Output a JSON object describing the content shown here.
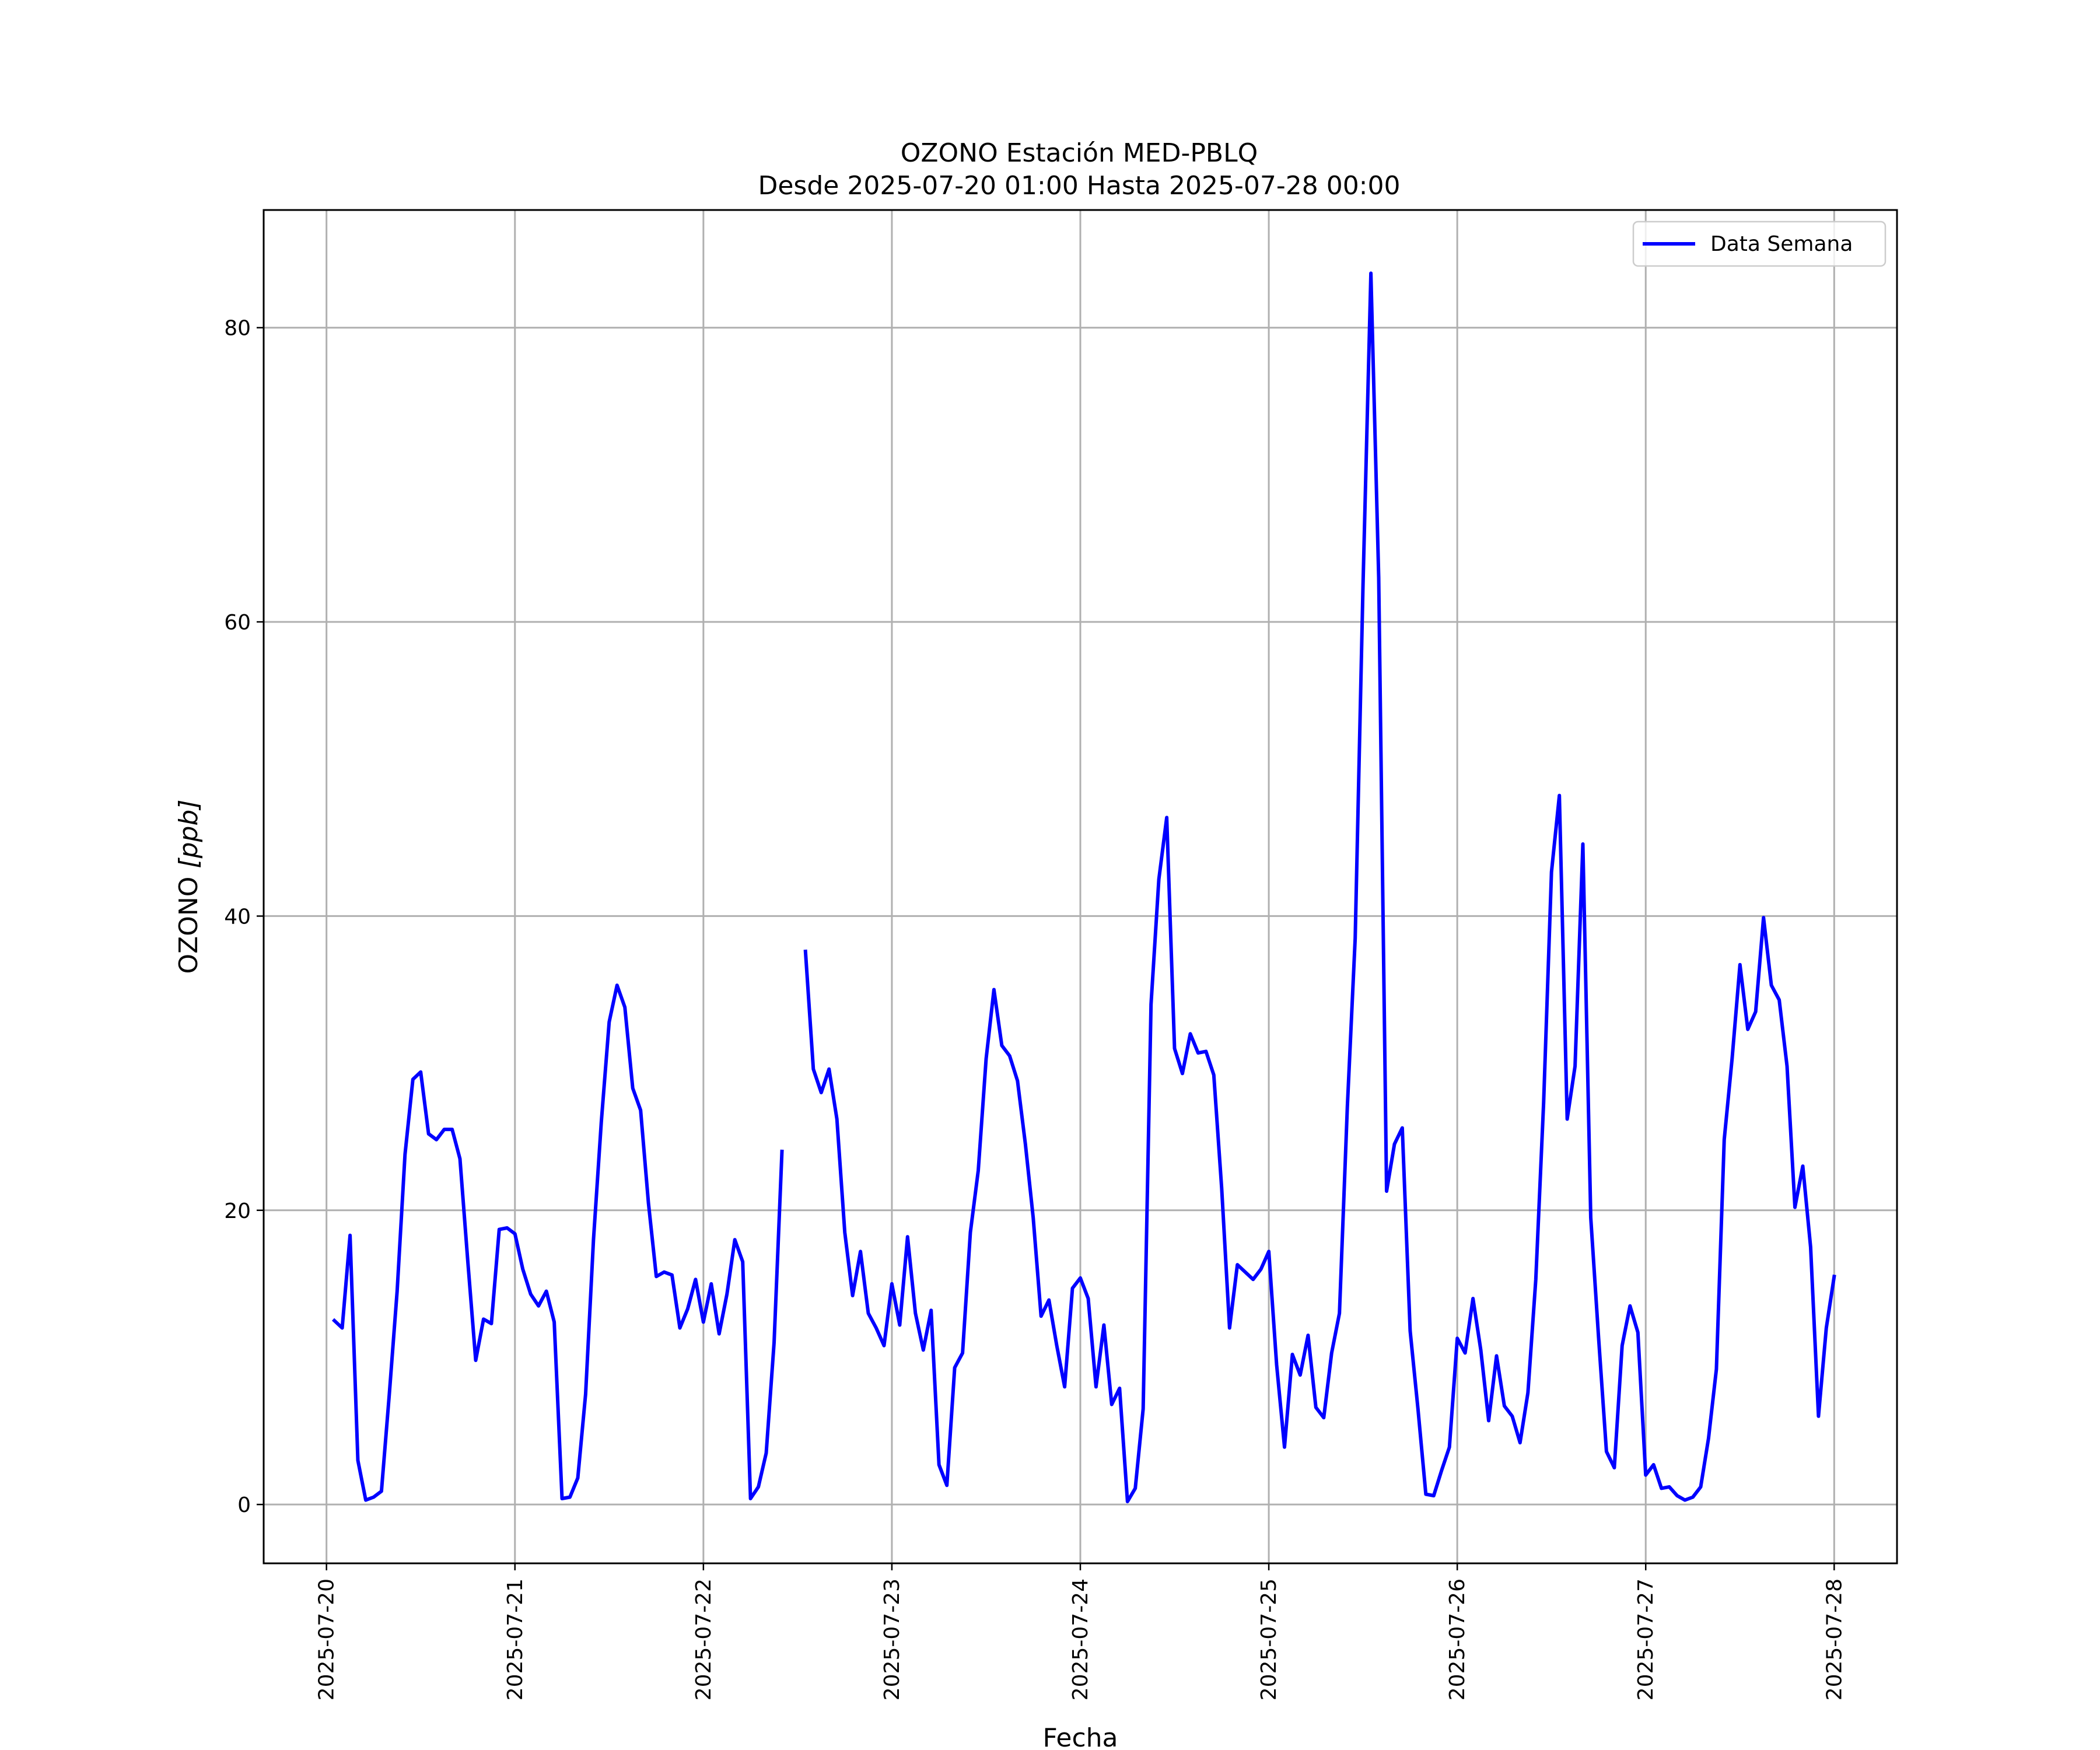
{
  "chart_data": {
    "type": "line",
    "title": "OZONO Estación MED-PBLQ",
    "subtitle": "Desde 2025-07-20 01:00 Hasta 2025-07-28 00:00",
    "xlabel": "Fecha",
    "ylabel_main": "OZONO ",
    "ylabel_unit": "[ppb]",
    "xlim": [
      "2025-07-19 16:00",
      "2025-07-28 08:00"
    ],
    "ylim": [
      -4,
      88
    ],
    "x_ticks": [
      "2025-07-20",
      "2025-07-21",
      "2025-07-22",
      "2025-07-23",
      "2025-07-24",
      "2025-07-25",
      "2025-07-26",
      "2025-07-27",
      "2025-07-28"
    ],
    "y_ticks": [
      0,
      20,
      40,
      60,
      80
    ],
    "grid": true,
    "legend_position": "top-right",
    "line_color": "#0000ff",
    "series": [
      {
        "name": "Data Semana",
        "points": [
          [
            "2025-07-20 01:00",
            12.5
          ],
          [
            "2025-07-20 02:00",
            12.0
          ],
          [
            "2025-07-20 03:00",
            18.3
          ],
          [
            "2025-07-20 04:00",
            3.0
          ],
          [
            "2025-07-20 05:00",
            0.3
          ],
          [
            "2025-07-20 06:00",
            0.5
          ],
          [
            "2025-07-20 07:00",
            0.9
          ],
          [
            "2025-07-20 08:00",
            7.5
          ],
          [
            "2025-07-20 09:00",
            14.5
          ],
          [
            "2025-07-20 10:00",
            23.8
          ],
          [
            "2025-07-20 11:00",
            28.9
          ],
          [
            "2025-07-20 12:00",
            29.4
          ],
          [
            "2025-07-20 13:00",
            25.2
          ],
          [
            "2025-07-20 14:00",
            24.8
          ],
          [
            "2025-07-20 15:00",
            25.5
          ],
          [
            "2025-07-20 16:00",
            25.5
          ],
          [
            "2025-07-20 17:00",
            23.5
          ],
          [
            "2025-07-20 18:00",
            16.5
          ],
          [
            "2025-07-20 19:00",
            9.8
          ],
          [
            "2025-07-20 20:00",
            12.6
          ],
          [
            "2025-07-20 21:00",
            12.3
          ],
          [
            "2025-07-20 22:00",
            18.7
          ],
          [
            "2025-07-20 23:00",
            18.8
          ],
          [
            "2025-07-21 00:00",
            18.4
          ],
          [
            "2025-07-21 01:00",
            16.0
          ],
          [
            "2025-07-21 02:00",
            14.3
          ],
          [
            "2025-07-21 03:00",
            13.5
          ],
          [
            "2025-07-21 04:00",
            14.5
          ],
          [
            "2025-07-21 05:00",
            12.4
          ],
          [
            "2025-07-21 06:00",
            0.4
          ],
          [
            "2025-07-21 07:00",
            0.5
          ],
          [
            "2025-07-21 08:00",
            1.8
          ],
          [
            "2025-07-21 09:00",
            7.5
          ],
          [
            "2025-07-21 10:00",
            18.0
          ],
          [
            "2025-07-21 11:00",
            26.0
          ],
          [
            "2025-07-21 12:00",
            32.8
          ],
          [
            "2025-07-21 13:00",
            35.3
          ],
          [
            "2025-07-21 14:00",
            33.8
          ],
          [
            "2025-07-21 15:00",
            28.3
          ],
          [
            "2025-07-21 16:00",
            26.8
          ],
          [
            "2025-07-21 17:00",
            20.5
          ],
          [
            "2025-07-21 18:00",
            15.5
          ],
          [
            "2025-07-21 19:00",
            15.8
          ],
          [
            "2025-07-21 20:00",
            15.6
          ],
          [
            "2025-07-21 21:00",
            12.0
          ],
          [
            "2025-07-21 22:00",
            13.3
          ],
          [
            "2025-07-21 23:00",
            15.3
          ],
          [
            "2025-07-22 00:00",
            12.4
          ],
          [
            "2025-07-22 01:00",
            15.0
          ],
          [
            "2025-07-22 02:00",
            11.6
          ],
          [
            "2025-07-22 03:00",
            14.3
          ],
          [
            "2025-07-22 04:00",
            18.0
          ],
          [
            "2025-07-22 05:00",
            16.5
          ],
          [
            "2025-07-22 06:00",
            0.4
          ],
          [
            "2025-07-22 07:00",
            1.2
          ],
          [
            "2025-07-22 08:00",
            3.5
          ],
          [
            "2025-07-22 09:00",
            11.0
          ],
          [
            "2025-07-22 10:00",
            24.0
          ],
          null,
          [
            "2025-07-22 13:00",
            37.6
          ],
          [
            "2025-07-22 14:00",
            29.6
          ],
          [
            "2025-07-22 15:00",
            28.0
          ],
          [
            "2025-07-22 16:00",
            29.6
          ],
          [
            "2025-07-22 17:00",
            26.2
          ],
          [
            "2025-07-22 18:00",
            18.5
          ],
          [
            "2025-07-22 19:00",
            14.2
          ],
          [
            "2025-07-22 20:00",
            17.2
          ],
          [
            "2025-07-22 21:00",
            13.0
          ],
          [
            "2025-07-22 22:00",
            12.0
          ],
          [
            "2025-07-22 23:00",
            10.8
          ],
          [
            "2025-07-23 00:00",
            15.0
          ],
          [
            "2025-07-23 01:00",
            12.2
          ],
          [
            "2025-07-23 02:00",
            18.2
          ],
          [
            "2025-07-23 03:00",
            13.0
          ],
          [
            "2025-07-23 04:00",
            10.5
          ],
          [
            "2025-07-23 05:00",
            13.2
          ],
          [
            "2025-07-23 06:00",
            2.7
          ],
          [
            "2025-07-23 07:00",
            1.3
          ],
          [
            "2025-07-23 08:00",
            9.3
          ],
          [
            "2025-07-23 09:00",
            10.3
          ],
          [
            "2025-07-23 10:00",
            18.5
          ],
          [
            "2025-07-23 11:00",
            22.7
          ],
          [
            "2025-07-23 12:00",
            30.3
          ],
          [
            "2025-07-23 13:00",
            35.0
          ],
          [
            "2025-07-23 14:00",
            31.2
          ],
          [
            "2025-07-23 15:00",
            30.5
          ],
          [
            "2025-07-23 16:00",
            28.8
          ],
          [
            "2025-07-23 17:00",
            24.5
          ],
          [
            "2025-07-23 18:00",
            19.5
          ],
          [
            "2025-07-23 19:00",
            12.8
          ],
          [
            "2025-07-23 20:00",
            13.9
          ],
          [
            "2025-07-23 21:00",
            10.8
          ],
          [
            "2025-07-23 22:00",
            8.0
          ],
          [
            "2025-07-23 23:00",
            14.7
          ],
          [
            "2025-07-24 00:00",
            15.4
          ],
          [
            "2025-07-24 01:00",
            14.0
          ],
          [
            "2025-07-24 02:00",
            8.0
          ],
          [
            "2025-07-24 03:00",
            12.2
          ],
          [
            "2025-07-24 04:00",
            6.8
          ],
          [
            "2025-07-24 05:00",
            7.9
          ],
          [
            "2025-07-24 06:00",
            0.2
          ],
          [
            "2025-07-24 07:00",
            1.1
          ],
          [
            "2025-07-24 08:00",
            6.5
          ],
          [
            "2025-07-24 09:00",
            34.0
          ],
          [
            "2025-07-24 10:00",
            42.5
          ],
          [
            "2025-07-24 11:00",
            46.7
          ],
          [
            "2025-07-24 12:00",
            31.0
          ],
          [
            "2025-07-24 13:00",
            29.3
          ],
          [
            "2025-07-24 14:00",
            32.0
          ],
          [
            "2025-07-24 15:00",
            30.7
          ],
          [
            "2025-07-24 16:00",
            30.8
          ],
          [
            "2025-07-24 17:00",
            29.2
          ],
          [
            "2025-07-24 18:00",
            21.5
          ],
          [
            "2025-07-24 19:00",
            12.0
          ],
          [
            "2025-07-24 20:00",
            16.3
          ],
          [
            "2025-07-24 21:00",
            15.8
          ],
          [
            "2025-07-24 22:00",
            15.3
          ],
          [
            "2025-07-24 23:00",
            16.0
          ],
          [
            "2025-07-25 00:00",
            17.2
          ],
          [
            "2025-07-25 01:00",
            9.5
          ],
          [
            "2025-07-25 02:00",
            3.9
          ],
          [
            "2025-07-25 03:00",
            10.2
          ],
          [
            "2025-07-25 04:00",
            8.8
          ],
          [
            "2025-07-25 05:00",
            11.5
          ],
          [
            "2025-07-25 06:00",
            6.6
          ],
          [
            "2025-07-25 07:00",
            5.9
          ],
          [
            "2025-07-25 08:00",
            10.3
          ],
          [
            "2025-07-25 09:00",
            13.0
          ],
          [
            "2025-07-25 10:00",
            27.0
          ],
          [
            "2025-07-25 11:00",
            38.5
          ],
          [
            "2025-07-25 12:00",
            62.5
          ],
          [
            "2025-07-25 13:00",
            83.7
          ],
          [
            "2025-07-25 14:00",
            63.0
          ],
          [
            "2025-07-25 15:00",
            21.3
          ],
          [
            "2025-07-25 16:00",
            24.5
          ],
          [
            "2025-07-25 17:00",
            25.6
          ],
          [
            "2025-07-25 18:00",
            11.8
          ],
          [
            "2025-07-25 19:00",
            6.5
          ],
          [
            "2025-07-25 20:00",
            0.7
          ],
          [
            "2025-07-25 21:00",
            0.6
          ],
          [
            "2025-07-25 22:00",
            2.3
          ],
          [
            "2025-07-25 23:00",
            3.9
          ],
          [
            "2025-07-26 00:00",
            11.3
          ],
          [
            "2025-07-26 01:00",
            10.3
          ],
          [
            "2025-07-26 02:00",
            14.0
          ],
          [
            "2025-07-26 03:00",
            10.5
          ],
          [
            "2025-07-26 04:00",
            5.7
          ],
          [
            "2025-07-26 05:00",
            10.1
          ],
          [
            "2025-07-26 06:00",
            6.7
          ],
          [
            "2025-07-26 07:00",
            6.0
          ],
          [
            "2025-07-26 08:00",
            4.2
          ],
          [
            "2025-07-26 09:00",
            7.6
          ],
          [
            "2025-07-26 10:00",
            15.3
          ],
          [
            "2025-07-26 11:00",
            27.3
          ],
          [
            "2025-07-26 12:00",
            43.0
          ],
          [
            "2025-07-26 13:00",
            48.2
          ],
          [
            "2025-07-26 14:00",
            26.2
          ],
          [
            "2025-07-26 15:00",
            29.8
          ],
          [
            "2025-07-26 16:00",
            44.9
          ],
          [
            "2025-07-26 17:00",
            19.5
          ],
          [
            "2025-07-26 18:00",
            11.3
          ],
          [
            "2025-07-26 19:00",
            3.6
          ],
          [
            "2025-07-26 20:00",
            2.5
          ],
          [
            "2025-07-26 21:00",
            10.8
          ],
          [
            "2025-07-26 22:00",
            13.5
          ],
          [
            "2025-07-26 23:00",
            11.7
          ],
          [
            "2025-07-27 00:00",
            2.0
          ],
          [
            "2025-07-27 01:00",
            2.7
          ],
          [
            "2025-07-27 02:00",
            1.1
          ],
          [
            "2025-07-27 03:00",
            1.2
          ],
          [
            "2025-07-27 04:00",
            0.6
          ],
          [
            "2025-07-27 05:00",
            0.3
          ],
          [
            "2025-07-27 06:00",
            0.5
          ],
          [
            "2025-07-27 07:00",
            1.2
          ],
          [
            "2025-07-27 08:00",
            4.5
          ],
          [
            "2025-07-27 09:00",
            9.2
          ],
          [
            "2025-07-27 10:00",
            24.8
          ],
          [
            "2025-07-27 11:00",
            30.3
          ],
          [
            "2025-07-27 12:00",
            36.7
          ],
          [
            "2025-07-27 13:00",
            32.3
          ],
          [
            "2025-07-27 14:00",
            33.5
          ],
          [
            "2025-07-27 15:00",
            39.9
          ],
          [
            "2025-07-27 16:00",
            35.3
          ],
          [
            "2025-07-27 17:00",
            34.3
          ],
          [
            "2025-07-27 18:00",
            29.8
          ],
          [
            "2025-07-27 19:00",
            20.2
          ],
          [
            "2025-07-27 20:00",
            23.0
          ],
          [
            "2025-07-27 21:00",
            17.5
          ],
          [
            "2025-07-27 22:00",
            6.0
          ],
          [
            "2025-07-27 23:00",
            12.0
          ],
          [
            "2025-07-28 00:00",
            15.5
          ]
        ]
      }
    ]
  }
}
